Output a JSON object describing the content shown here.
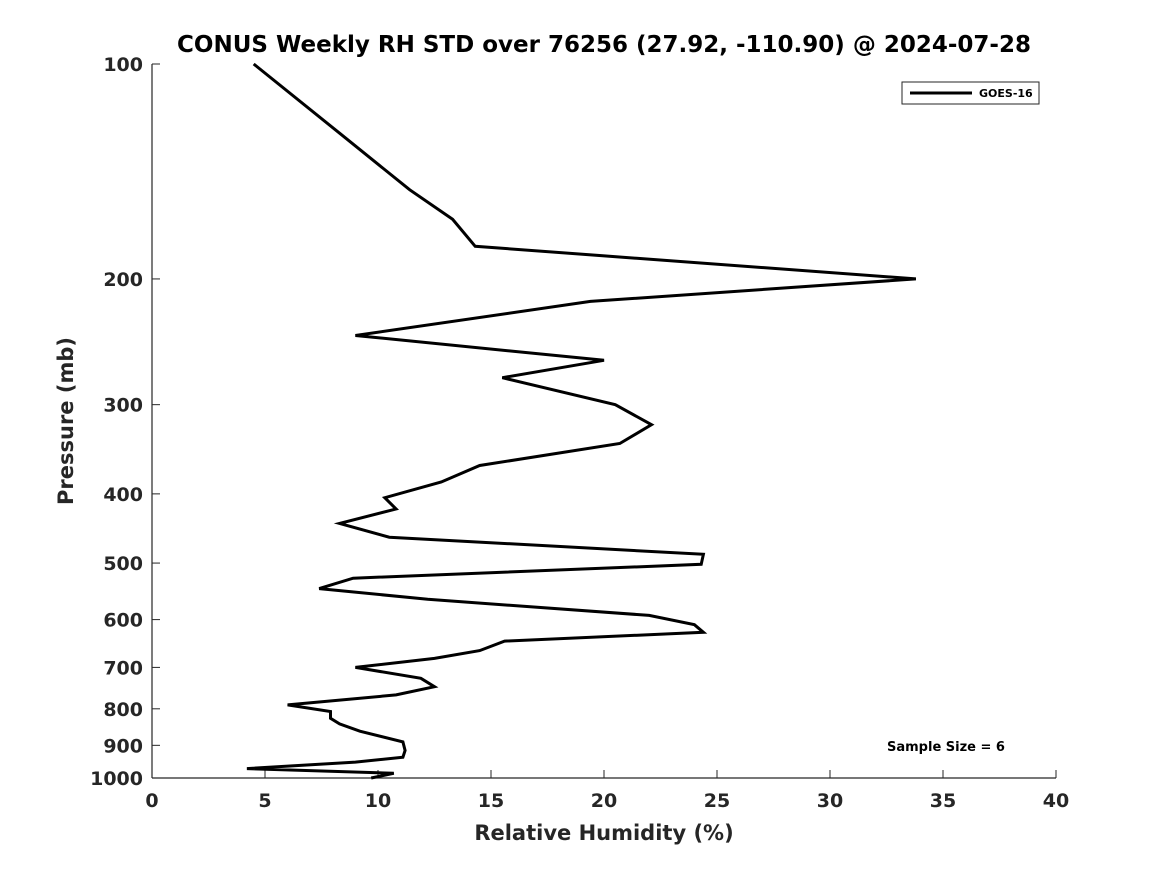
{
  "chart_data": {
    "type": "line",
    "title": "CONUS Weekly RH STD over 76256 (27.92, -110.90) @ 2024-07-28",
    "xlabel": "Relative Humidity (%)",
    "ylabel": "Pressure (mb)",
    "xlim": [
      0,
      40
    ],
    "ylim": [
      1000,
      100
    ],
    "y_scale": "log",
    "y_reversed": true,
    "x_ticks": [
      "0",
      "5",
      "10",
      "15",
      "20",
      "25",
      "30",
      "35",
      "40"
    ],
    "y_ticks": [
      "100",
      "200",
      "300",
      "400",
      "500",
      "600",
      "700",
      "800",
      "900",
      "1000"
    ],
    "grid": false,
    "legend_position": "top-right",
    "annotation": "Sample Size = 6",
    "series": [
      {
        "name": "GOES-16",
        "color": "#000000",
        "points": [
          [
            4.5,
            100
          ],
          [
            8.3,
            125
          ],
          [
            11.4,
            150
          ],
          [
            13.3,
            165
          ],
          [
            14.3,
            180
          ],
          [
            33.8,
            200
          ],
          [
            19.4,
            215
          ],
          [
            9.0,
            240
          ],
          [
            20.0,
            260
          ],
          [
            15.5,
            275
          ],
          [
            20.5,
            300
          ],
          [
            22.1,
            320
          ],
          [
            20.7,
            340
          ],
          [
            14.5,
            365
          ],
          [
            12.8,
            385
          ],
          [
            10.3,
            405
          ],
          [
            10.8,
            420
          ],
          [
            8.3,
            440
          ],
          [
            10.5,
            460
          ],
          [
            24.4,
            486
          ],
          [
            24.3,
            502
          ],
          [
            8.9,
            525
          ],
          [
            7.4,
            543
          ],
          [
            12.2,
            562
          ],
          [
            22.0,
            592
          ],
          [
            24.0,
            610
          ],
          [
            24.4,
            625
          ],
          [
            15.6,
            643
          ],
          [
            14.5,
            663
          ],
          [
            12.5,
            680
          ],
          [
            9.0,
            700
          ],
          [
            11.9,
            725
          ],
          [
            12.5,
            745
          ],
          [
            10.8,
            765
          ],
          [
            6.0,
            790
          ],
          [
            7.9,
            807
          ],
          [
            7.9,
            825
          ],
          [
            8.3,
            840
          ],
          [
            9.2,
            860
          ],
          [
            11.1,
            890
          ],
          [
            11.2,
            915
          ],
          [
            11.1,
            935
          ],
          [
            9.0,
            950
          ],
          [
            4.2,
            970
          ],
          [
            10.7,
            985
          ],
          [
            9.7,
            1000
          ]
        ]
      }
    ]
  }
}
